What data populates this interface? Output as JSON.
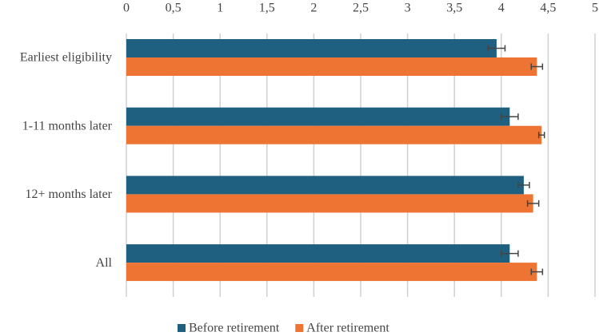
{
  "chart_data": {
    "type": "hbar",
    "categories": [
      "Earliest eligibility",
      "1-11 months later",
      "12+ months later",
      "All"
    ],
    "series": [
      {
        "name": "Before retirement",
        "color": "#1f5f80",
        "values": [
          3.95,
          4.09,
          4.24,
          4.09
        ],
        "errors": [
          0.09,
          0.09,
          0.06,
          0.09
        ]
      },
      {
        "name": "After retirement",
        "color": "#ed7433",
        "values": [
          4.38,
          4.43,
          4.34,
          4.38
        ],
        "errors": [
          0.06,
          0.03,
          0.06,
          0.06
        ]
      }
    ],
    "xlim": [
      0,
      5
    ],
    "xticks": [
      0,
      {
        "value": 0.5,
        "label": "0,5"
      },
      1,
      {
        "value": 1.5,
        "label": "1,5"
      },
      2,
      {
        "value": 2.5,
        "label": "2,5"
      },
      3,
      {
        "value": 3.5,
        "label": "3,5"
      },
      4,
      {
        "value": 4.5,
        "label": "4,5"
      },
      5
    ],
    "grid": true,
    "legend": "bottom"
  }
}
